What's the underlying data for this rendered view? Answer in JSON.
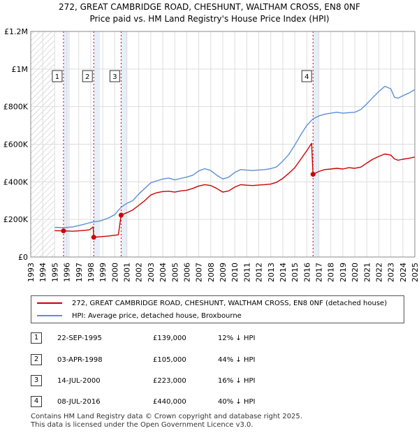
{
  "title_line1": "272, GREAT CAMBRIDGE ROAD, CHESHUNT, WALTHAM CROSS, EN8 0NF",
  "title_line2": "Price paid vs. HM Land Registry's House Price Index (HPI)",
  "colors": {
    "red": "#cc0000",
    "blue": "#5b8fd6",
    "hatch": "#bbbbbb",
    "shade": "#e6eef8",
    "grid": "#dddddd"
  },
  "chart_data": {
    "type": "line",
    "x_range": [
      1993,
      2025
    ],
    "ylim": [
      0,
      1200000
    ],
    "y_ticks": [
      {
        "value": 0,
        "label": "£0"
      },
      {
        "value": 200000,
        "label": "£200K"
      },
      {
        "value": 400000,
        "label": "£400K"
      },
      {
        "value": 600000,
        "label": "£600K"
      },
      {
        "value": 800000,
        "label": "£800K"
      },
      {
        "value": 1000000,
        "label": "£1M"
      },
      {
        "value": 1200000,
        "label": "£1.2M"
      }
    ],
    "x_ticks": [
      "1993",
      "1994",
      "1995",
      "1996",
      "1997",
      "1998",
      "1999",
      "2000",
      "2001",
      "2002",
      "2003",
      "2004",
      "2005",
      "2006",
      "2007",
      "2008",
      "2009",
      "2010",
      "2011",
      "2012",
      "2013",
      "2014",
      "2015",
      "2016",
      "2017",
      "2018",
      "2019",
      "2020",
      "2021",
      "2022",
      "2023",
      "2024",
      "2025"
    ],
    "hatched_before": 1995.0,
    "series": [
      {
        "name": "272, GREAT CAMBRIDGE ROAD, CHESHUNT, WALTHAM CROSS, EN8 0NF (detached house)",
        "color": "#cc0000",
        "points": [
          [
            1995.0,
            140000
          ],
          [
            1995.73,
            139000
          ],
          [
            1996.5,
            137000
          ],
          [
            1997.2,
            140000
          ],
          [
            1997.9,
            145000
          ],
          [
            1998.2,
            160000
          ],
          [
            1998.25,
            105000
          ],
          [
            1998.8,
            108000
          ],
          [
            1999.5,
            112000
          ],
          [
            2000.3,
            118000
          ],
          [
            2000.53,
            223000
          ],
          [
            2001.0,
            235000
          ],
          [
            2001.5,
            250000
          ],
          [
            2002.0,
            275000
          ],
          [
            2002.5,
            300000
          ],
          [
            2003.0,
            330000
          ],
          [
            2003.5,
            342000
          ],
          [
            2004.0,
            348000
          ],
          [
            2004.5,
            350000
          ],
          [
            2005.0,
            345000
          ],
          [
            2005.5,
            352000
          ],
          [
            2006.0,
            355000
          ],
          [
            2006.5,
            365000
          ],
          [
            2007.0,
            378000
          ],
          [
            2007.5,
            385000
          ],
          [
            2008.0,
            380000
          ],
          [
            2008.5,
            365000
          ],
          [
            2009.0,
            345000
          ],
          [
            2009.5,
            352000
          ],
          [
            2010.0,
            372000
          ],
          [
            2010.5,
            385000
          ],
          [
            2011.0,
            382000
          ],
          [
            2011.5,
            380000
          ],
          [
            2012.0,
            383000
          ],
          [
            2012.5,
            385000
          ],
          [
            2013.0,
            388000
          ],
          [
            2013.5,
            398000
          ],
          [
            2014.0,
            418000
          ],
          [
            2014.5,
            445000
          ],
          [
            2015.0,
            475000
          ],
          [
            2015.5,
            520000
          ],
          [
            2016.0,
            565000
          ],
          [
            2016.4,
            605000
          ],
          [
            2016.52,
            440000
          ],
          [
            2017.0,
            455000
          ],
          [
            2017.5,
            465000
          ],
          [
            2018.0,
            468000
          ],
          [
            2018.5,
            472000
          ],
          [
            2019.0,
            468000
          ],
          [
            2019.5,
            475000
          ],
          [
            2020.0,
            472000
          ],
          [
            2020.5,
            478000
          ],
          [
            2021.0,
            500000
          ],
          [
            2021.5,
            520000
          ],
          [
            2022.0,
            535000
          ],
          [
            2022.5,
            548000
          ],
          [
            2023.0,
            542000
          ],
          [
            2023.3,
            522000
          ],
          [
            2023.6,
            515000
          ],
          [
            2024.0,
            520000
          ],
          [
            2024.5,
            525000
          ],
          [
            2025.0,
            532000
          ]
        ]
      },
      {
        "name": "HPI: Average price, detached house, Broxbourne",
        "color": "#5b8fd6",
        "points": [
          [
            1995.0,
            158000
          ],
          [
            1995.73,
            156000
          ],
          [
            1996.5,
            160000
          ],
          [
            1997.2,
            170000
          ],
          [
            1997.9,
            182000
          ],
          [
            1998.25,
            187000
          ],
          [
            1998.8,
            192000
          ],
          [
            1999.5,
            208000
          ],
          [
            2000.0,
            225000
          ],
          [
            2000.53,
            265000
          ],
          [
            2001.0,
            285000
          ],
          [
            2001.5,
            300000
          ],
          [
            2002.0,
            335000
          ],
          [
            2002.5,
            365000
          ],
          [
            2003.0,
            395000
          ],
          [
            2003.5,
            405000
          ],
          [
            2004.0,
            415000
          ],
          [
            2004.5,
            420000
          ],
          [
            2005.0,
            410000
          ],
          [
            2005.5,
            418000
          ],
          [
            2006.0,
            425000
          ],
          [
            2006.5,
            435000
          ],
          [
            2007.0,
            458000
          ],
          [
            2007.5,
            470000
          ],
          [
            2008.0,
            460000
          ],
          [
            2008.5,
            435000
          ],
          [
            2009.0,
            415000
          ],
          [
            2009.5,
            425000
          ],
          [
            2010.0,
            450000
          ],
          [
            2010.5,
            465000
          ],
          [
            2011.0,
            462000
          ],
          [
            2011.5,
            460000
          ],
          [
            2012.0,
            463000
          ],
          [
            2012.5,
            465000
          ],
          [
            2013.0,
            470000
          ],
          [
            2013.5,
            480000
          ],
          [
            2014.0,
            510000
          ],
          [
            2014.5,
            545000
          ],
          [
            2015.0,
            595000
          ],
          [
            2015.5,
            650000
          ],
          [
            2016.0,
            700000
          ],
          [
            2016.52,
            735000
          ],
          [
            2017.0,
            750000
          ],
          [
            2017.5,
            760000
          ],
          [
            2018.0,
            765000
          ],
          [
            2018.5,
            770000
          ],
          [
            2019.0,
            765000
          ],
          [
            2019.5,
            768000
          ],
          [
            2020.0,
            770000
          ],
          [
            2020.5,
            785000
          ],
          [
            2021.0,
            815000
          ],
          [
            2021.5,
            848000
          ],
          [
            2022.0,
            880000
          ],
          [
            2022.5,
            908000
          ],
          [
            2023.0,
            895000
          ],
          [
            2023.3,
            850000
          ],
          [
            2023.6,
            845000
          ],
          [
            2024.0,
            858000
          ],
          [
            2024.5,
            872000
          ],
          [
            2025.0,
            890000
          ]
        ]
      }
    ],
    "sales": [
      {
        "label": "1",
        "x": 1995.73,
        "price": 139000
      },
      {
        "label": "2",
        "x": 1998.25,
        "price": 105000
      },
      {
        "label": "3",
        "x": 2000.53,
        "price": 223000
      },
      {
        "label": "4",
        "x": 2016.52,
        "price": 440000
      }
    ]
  },
  "legend": {
    "items": [
      {
        "label": "272, GREAT CAMBRIDGE ROAD, CHESHUNT, WALTHAM CROSS, EN8 0NF (detached house)",
        "color": "#cc0000"
      },
      {
        "label": "HPI: Average price, detached house, Broxbourne",
        "color": "#5b8fd6"
      }
    ]
  },
  "transactions": [
    {
      "num": "1",
      "date": "22-SEP-1995",
      "price": "£139,000",
      "hpi": "12% ↓ HPI"
    },
    {
      "num": "2",
      "date": "03-APR-1998",
      "price": "£105,000",
      "hpi": "44% ↓ HPI"
    },
    {
      "num": "3",
      "date": "14-JUL-2000",
      "price": "£223,000",
      "hpi": "16% ↓ HPI"
    },
    {
      "num": "4",
      "date": "08-JUL-2016",
      "price": "£440,000",
      "hpi": "40% ↓ HPI"
    }
  ],
  "footer_line1": "Contains HM Land Registry data © Crown copyright and database right 2025.",
  "footer_line2": "This data is licensed under the Open Government Licence v3.0."
}
